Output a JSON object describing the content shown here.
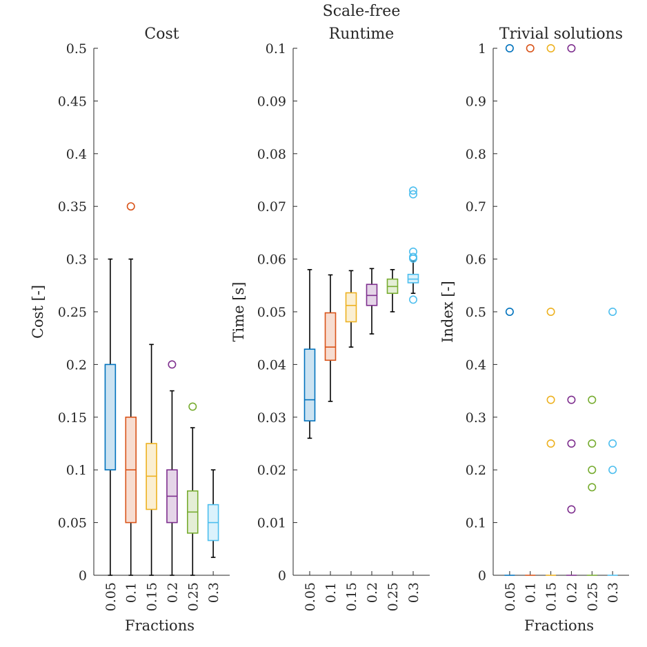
{
  "figure": {
    "suptitle": "Scale-free"
  },
  "chart_data": [
    {
      "type": "box",
      "title": "Cost",
      "xlabel": "Fractions",
      "ylabel": "Cost [-]",
      "ylim": [
        0,
        0.5
      ],
      "yticks": [
        0,
        0.05,
        0.1,
        0.15,
        0.2,
        0.25,
        0.3,
        0.35,
        0.4,
        0.45,
        0.5
      ],
      "ytick_labels": [
        "0",
        "0.05",
        "0.1",
        "0.15",
        "0.2",
        "0.25",
        "0.3",
        "0.35",
        "0.4",
        "0.45",
        "0.5"
      ],
      "categories": [
        "0.05",
        "0.1",
        "0.15",
        "0.2",
        "0.25",
        "0.3"
      ],
      "boxes": [
        {
          "q1": 0.1,
          "median": 0.1,
          "q3": 0.2,
          "whisker_low": 0,
          "whisker_high": 0.3,
          "outliers": []
        },
        {
          "q1": 0.05,
          "median": 0.1,
          "q3": 0.15,
          "whisker_low": 0,
          "whisker_high": 0.3,
          "outliers": [
            0.35
          ]
        },
        {
          "q1": 0.0625,
          "median": 0.094,
          "q3": 0.125,
          "whisker_low": 0,
          "whisker_high": 0.219,
          "outliers": []
        },
        {
          "q1": 0.05,
          "median": 0.075,
          "q3": 0.1,
          "whisker_low": 0,
          "whisker_high": 0.175,
          "outliers": [
            0.2
          ]
        },
        {
          "q1": 0.04,
          "median": 0.06,
          "q3": 0.08,
          "whisker_low": 0,
          "whisker_high": 0.14,
          "outliers": [
            0.16
          ]
        },
        {
          "q1": 0.033,
          "median": 0.05,
          "q3": 0.067,
          "whisker_low": 0.017,
          "whisker_high": 0.1,
          "outliers": []
        }
      ]
    },
    {
      "type": "box",
      "title": "Runtime",
      "xlabel": "",
      "ylabel": "Time [s]",
      "ylim": [
        0,
        0.1
      ],
      "yticks": [
        0,
        0.01,
        0.02,
        0.03,
        0.04,
        0.05,
        0.06,
        0.07,
        0.08,
        0.09,
        0.1
      ],
      "ytick_labels": [
        "0",
        "0.01",
        "0.02",
        "0.03",
        "0.04",
        "0.05",
        "0.06",
        "0.07",
        "0.08",
        "0.09",
        "0.1"
      ],
      "categories": [
        "0.05",
        "0.1",
        "0.15",
        "0.2",
        "0.25",
        "0.3"
      ],
      "boxes": [
        {
          "q1": 0.0293,
          "median": 0.0333,
          "q3": 0.0429,
          "whisker_low": 0.026,
          "whisker_high": 0.058,
          "outliers": []
        },
        {
          "q1": 0.0408,
          "median": 0.0433,
          "q3": 0.0498,
          "whisker_low": 0.033,
          "whisker_high": 0.057,
          "outliers": []
        },
        {
          "q1": 0.0481,
          "median": 0.0512,
          "q3": 0.0536,
          "whisker_low": 0.0433,
          "whisker_high": 0.0578,
          "outliers": []
        },
        {
          "q1": 0.0512,
          "median": 0.0531,
          "q3": 0.0552,
          "whisker_low": 0.0458,
          "whisker_high": 0.0582,
          "outliers": []
        },
        {
          "q1": 0.0535,
          "median": 0.0548,
          "q3": 0.0562,
          "whisker_low": 0.05,
          "whisker_high": 0.058,
          "outliers": []
        },
        {
          "q1": 0.0555,
          "median": 0.0562,
          "q3": 0.0571,
          "whisker_low": 0.0535,
          "whisker_high": 0.0597,
          "outliers": [
            0.0523,
            0.0601,
            0.0604,
            0.0614,
            0.0723,
            0.073
          ]
        }
      ]
    },
    {
      "type": "box",
      "title": "Trivial solutions",
      "xlabel": "Fractions",
      "ylabel": "Index [-]",
      "ylim": [
        0,
        1
      ],
      "yticks": [
        0,
        0.1,
        0.2,
        0.3,
        0.4,
        0.5,
        0.6,
        0.7,
        0.8,
        0.9,
        1
      ],
      "ytick_labels": [
        "0",
        "0.1",
        "0.2",
        "0.3",
        "0.4",
        "0.5",
        "0.6",
        "0.7",
        "0.8",
        "0.9",
        "1"
      ],
      "categories": [
        "0.05",
        "0.1",
        "0.15",
        "0.2",
        "0.25",
        "0.3"
      ],
      "boxes": [
        {
          "q1": 0,
          "median": 0,
          "q3": 0,
          "whisker_low": 0,
          "whisker_high": 0,
          "outliers": [
            0.5,
            1.0
          ]
        },
        {
          "q1": 0,
          "median": 0,
          "q3": 0,
          "whisker_low": 0,
          "whisker_high": 0,
          "outliers": [
            1.0
          ]
        },
        {
          "q1": 0,
          "median": 0,
          "q3": 0,
          "whisker_low": 0,
          "whisker_high": 0,
          "outliers": [
            0.25,
            0.333,
            0.5,
            1.0
          ]
        },
        {
          "q1": 0,
          "median": 0,
          "q3": 0,
          "whisker_low": 0,
          "whisker_high": 0,
          "outliers": [
            0.125,
            0.25,
            0.333,
            1.0
          ]
        },
        {
          "q1": 0,
          "median": 0,
          "q3": 0,
          "whisker_low": 0,
          "whisker_high": 0,
          "outliers": [
            0.167,
            0.2,
            0.25,
            0.333
          ]
        },
        {
          "q1": 0,
          "median": 0,
          "q3": 0,
          "whisker_low": 0,
          "whisker_high": 0,
          "outliers": [
            0.2,
            0.25,
            0.5
          ]
        }
      ]
    }
  ],
  "colors": {
    "series": [
      "#0072BD",
      "#D95319",
      "#EDB120",
      "#7E2F8E",
      "#77AC30",
      "#4DBEEE"
    ],
    "fill": [
      "#CCE3F2",
      "#F7DDD1",
      "#FBEFD2",
      "#E5D5E8",
      "#E4EED6",
      "#DBF2FC"
    ],
    "axis": "#262626",
    "whisker": "#000000"
  }
}
